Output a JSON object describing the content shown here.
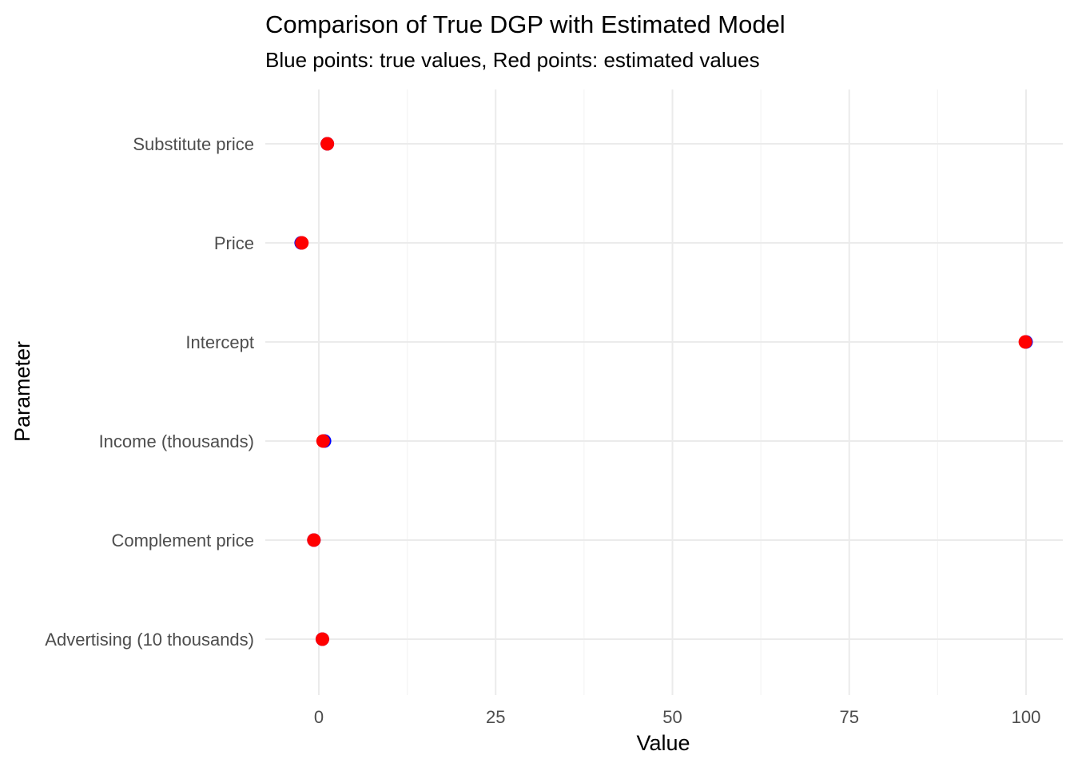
{
  "chart_data": {
    "type": "scatter",
    "title": "Comparison of True DGP with Estimated Model",
    "subtitle": "Blue points: true values, Red points: estimated values",
    "xlabel": "Value",
    "ylabel": "Parameter",
    "xlim": [
      -3.75,
      105
    ],
    "x_ticks": [
      0,
      25,
      50,
      75,
      100
    ],
    "x_tick_labels": [
      "0",
      "25",
      "50",
      "75",
      "100"
    ],
    "categories": [
      "Substitute price",
      "Price",
      "Intercept",
      "Income (thousands)",
      "Complement price",
      "Advertising (10 thousands)"
    ],
    "grid": true,
    "legend": "none",
    "series": [
      {
        "color": "#0000ff",
        "values": [
          1.2,
          -2.5,
          100.0,
          0.8,
          -0.7,
          0.5
        ]
      },
      {
        "color": "#ff0000",
        "values": [
          1.2,
          -2.4,
          99.9,
          0.6,
          -0.7,
          0.5
        ]
      }
    ]
  }
}
